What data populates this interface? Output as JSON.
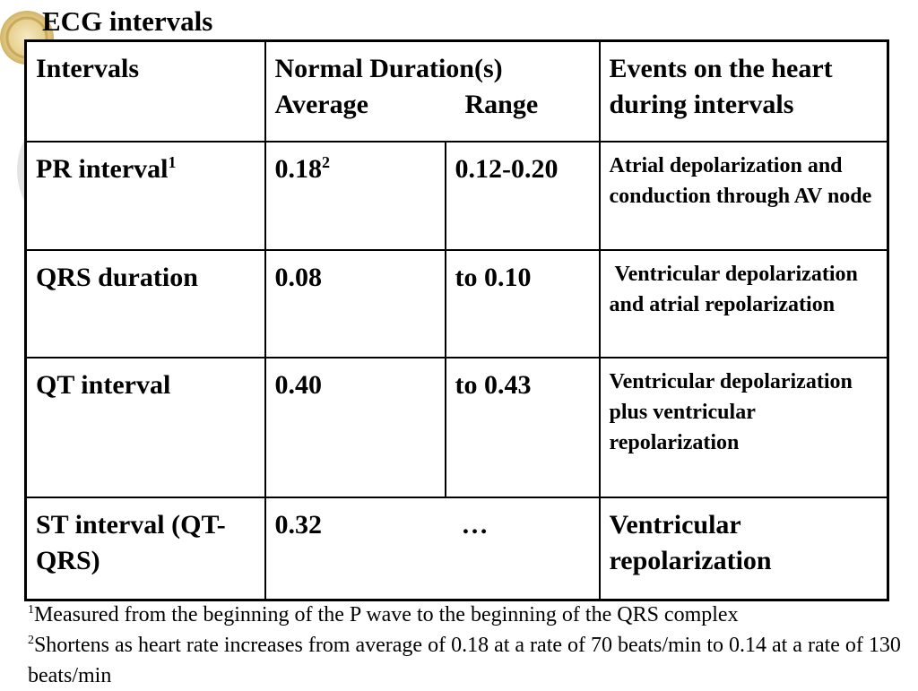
{
  "slide": {
    "title": "ECG intervals"
  },
  "table": {
    "header": {
      "intervals": "Intervals",
      "duration_line1": "Normal Duration(s)",
      "duration_average": "Average",
      "duration_range": "Range",
      "events": "Events on the heart during intervals"
    },
    "rows": [
      {
        "interval": "PR interval",
        "interval_sup": "1",
        "average": "0.18",
        "average_sup": "2",
        "range": "0.12-0.20",
        "events": "Atrial depolarization and conduction through AV node"
      },
      {
        "interval": "QRS duration",
        "interval_sup": "",
        "average": "0.08",
        "average_sup": "",
        "range": "to 0.10",
        "events": "Ventricular depolarization and atrial repolarization"
      },
      {
        "interval": "QT interval",
        "interval_sup": "",
        "average": "0.40",
        "average_sup": "",
        "range": "to 0.43",
        "events": "Ventricular depolarization plus ventricular repolarization"
      },
      {
        "interval": "ST interval (QT-QRS)",
        "interval_sup": "",
        "average": "0.32",
        "average_sup": "",
        "range": "…",
        "events": "Ventricular repolarization"
      }
    ]
  },
  "footnotes": [
    {
      "marker": "1",
      "text": "Measured from the beginning of the P wave to the beginning of the QRS complex"
    },
    {
      "marker": "2",
      "text": "Shortens as heart rate increases from average of 0.18 at a rate of 70 beats/min to 0.14 at a rate of 130 beats/min"
    }
  ]
}
